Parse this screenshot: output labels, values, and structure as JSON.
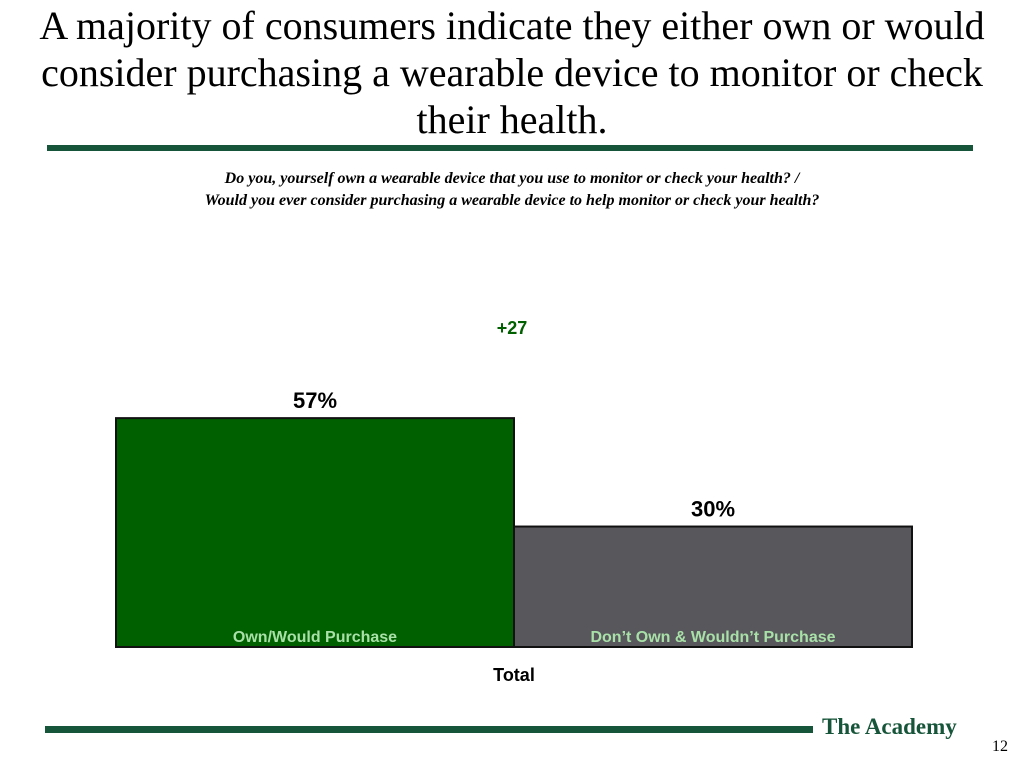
{
  "slide": {
    "title": "A majority of consumers indicate they either own or would consider purchasing a wearable device to monitor or check their health.",
    "question_line1": "Do you, yourself own a wearable device that you use to monitor or check your health?  /",
    "question_line2": "Would you ever consider purchasing a wearable device to help monitor or check your health?",
    "footer_brand": "The Academy",
    "page_number": "12"
  },
  "colors": {
    "accent": "#17553a",
    "own_bar": "#006000",
    "dont_own_bar": "#58585c",
    "diff_text": "#006000"
  },
  "chart_data": {
    "type": "bar",
    "title": "",
    "xlabel": "Total",
    "ylabel": "",
    "ylim": [
      0,
      65
    ],
    "grid": false,
    "categories": [
      "Own/Would Purchase",
      "Don’t Own & Wouldn’t Purchase"
    ],
    "values": [
      57,
      30
    ],
    "value_labels": [
      "57%",
      "30%"
    ],
    "annotation": "+27"
  }
}
